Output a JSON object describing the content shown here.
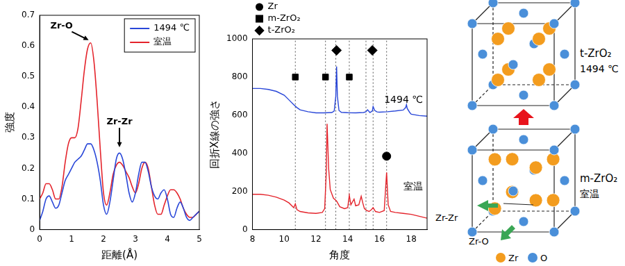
{
  "chart_data": [
    {
      "type": "line",
      "x_label": "距離(Å)",
      "y_label": "強度",
      "xlim": [
        0,
        5
      ],
      "xticks": [
        0,
        1,
        2,
        3,
        4,
        5
      ],
      "ylim": [
        0,
        0.7
      ],
      "yticks": [
        0,
        0.1,
        0.2,
        0.3,
        0.4,
        0.5,
        0.6,
        0.7
      ],
      "legend": "upper right",
      "x": [
        0,
        0.1,
        0.2,
        0.3,
        0.4,
        0.5,
        0.6,
        0.7,
        0.8,
        0.9,
        1.0,
        1.1,
        1.2,
        1.3,
        1.4,
        1.5,
        1.6,
        1.7,
        1.8,
        1.9,
        2.0,
        2.1,
        2.2,
        2.3,
        2.4,
        2.5,
        2.6,
        2.7,
        2.8,
        2.9,
        3.0,
        3.1,
        3.2,
        3.3,
        3.4,
        3.5,
        3.6,
        3.7,
        3.8,
        3.9,
        4.0,
        4.1,
        4.2,
        4.3,
        4.4,
        4.5,
        4.6,
        4.7,
        4.8,
        4.9,
        5.0
      ],
      "series": [
        {
          "name": "1494 ℃",
          "color": "#2846d8",
          "values": [
            0.03,
            0.06,
            0.1,
            0.11,
            0.09,
            0.07,
            0.08,
            0.12,
            0.16,
            0.18,
            0.2,
            0.22,
            0.23,
            0.24,
            0.26,
            0.28,
            0.28,
            0.26,
            0.22,
            0.16,
            0.08,
            0.05,
            0.09,
            0.16,
            0.23,
            0.25,
            0.23,
            0.18,
            0.12,
            0.09,
            0.12,
            0.18,
            0.22,
            0.22,
            0.19,
            0.14,
            0.11,
            0.1,
            0.12,
            0.13,
            0.1,
            0.05,
            0.04,
            0.07,
            0.09,
            0.07,
            0.04,
            0.03,
            0.04,
            0.05,
            0.06
          ]
        },
        {
          "name": "室温",
          "color": "#e4232b",
          "values": [
            0.1,
            0.12,
            0.15,
            0.15,
            0.13,
            0.1,
            0.1,
            0.14,
            0.22,
            0.28,
            0.3,
            0.3,
            0.33,
            0.42,
            0.52,
            0.59,
            0.61,
            0.55,
            0.42,
            0.26,
            0.12,
            0.08,
            0.12,
            0.18,
            0.21,
            0.22,
            0.21,
            0.19,
            0.17,
            0.14,
            0.12,
            0.15,
            0.2,
            0.22,
            0.2,
            0.14,
            0.08,
            0.05,
            0.05,
            0.08,
            0.11,
            0.13,
            0.13,
            0.12,
            0.1,
            0.07,
            0.05,
            0.04,
            0.04,
            0.05,
            0.06
          ]
        }
      ],
      "annotations": [
        {
          "text": "Zr-O",
          "x": 1.6,
          "y": 0.61
        },
        {
          "text": "Zr-Zr",
          "x": 2.5,
          "y": 0.26
        }
      ]
    },
    {
      "type": "line",
      "x_label": "角度",
      "y_label": "回折X線の強さ",
      "xlim": [
        8,
        19
      ],
      "xticks": [
        8,
        10,
        12,
        14,
        16,
        18
      ],
      "ylim": [
        0,
        1000
      ],
      "yticks": [
        0,
        200,
        400,
        600,
        800,
        1000
      ],
      "legend": "upper left",
      "series": [
        {
          "name": "1494 ℃",
          "color": "#2846d8",
          "x": [
            8,
            8.5,
            9,
            9.5,
            10,
            10.3,
            10.6,
            10.8,
            11,
            11.5,
            12,
            12.5,
            13,
            13.15,
            13.25,
            13.3,
            13.35,
            13.45,
            13.6,
            14,
            14.5,
            15,
            15.15,
            15.25,
            15.4,
            15.55,
            15.6,
            15.7,
            15.85,
            16,
            16.5,
            17,
            17.5,
            17.65,
            17.7,
            17.75,
            17.9,
            18,
            18.5,
            19
          ],
          "values": [
            740,
            740,
            735,
            725,
            705,
            680,
            655,
            640,
            628,
            618,
            612,
            612,
            614,
            622,
            700,
            855,
            700,
            625,
            615,
            613,
            612,
            614,
            618,
            628,
            614,
            622,
            645,
            625,
            617,
            616,
            618,
            622,
            627,
            640,
            655,
            635,
            615,
            605,
            598,
            595
          ]
        },
        {
          "name": "室温",
          "color": "#e4232b",
          "x": [
            8,
            8.5,
            9,
            9.5,
            10,
            10.3,
            10.6,
            10.7,
            10.8,
            11,
            11.5,
            12,
            12.4,
            12.55,
            12.65,
            12.7,
            12.8,
            12.9,
            13.1,
            13.3,
            13.5,
            13.8,
            14.0,
            14.1,
            14.2,
            14.3,
            14.4,
            14.5,
            14.7,
            14.85,
            14.95,
            15.05,
            15.2,
            15.35,
            15.5,
            15.6,
            15.75,
            16,
            16.3,
            16.45,
            16.55,
            16.7,
            17,
            17.5,
            18,
            18.5,
            19
          ],
          "values": [
            185,
            185,
            180,
            170,
            155,
            140,
            115,
            135,
            105,
            95,
            88,
            85,
            90,
            110,
            300,
            555,
            320,
            210,
            165,
            150,
            120,
            110,
            115,
            180,
            130,
            145,
            160,
            125,
            130,
            175,
            140,
            110,
            100,
            95,
            105,
            115,
            95,
            90,
            100,
            300,
            130,
            95,
            90,
            85,
            80,
            70,
            60
          ]
        }
      ],
      "markers": [
        {
          "name": "Zr",
          "marker": "circle",
          "color": "#000000",
          "points": [
            {
              "x": 16.45,
              "y": 385
            }
          ]
        },
        {
          "name": "m-ZrO₂",
          "marker": "square",
          "color": "#000000",
          "points": [
            {
              "x": 10.7,
              "y": 800
            },
            {
              "x": 12.6,
              "y": 800
            },
            {
              "x": 14.1,
              "y": 800
            }
          ]
        },
        {
          "name": "t-ZrO₂",
          "marker": "diamond",
          "color": "#000000",
          "points": [
            {
              "x": 13.3,
              "y": 940
            },
            {
              "x": 15.55,
              "y": 940
            }
          ]
        }
      ],
      "reference_lines": {
        "x": [
          10.7,
          12.6,
          13.25,
          14.1,
          15.15,
          15.6,
          16.45
        ],
        "line_style": "dotted"
      }
    }
  ],
  "diagram": {
    "structures": [
      {
        "name": "t-ZrO₂",
        "condition": "1494 ℃"
      },
      {
        "name": "m-ZrO₂",
        "condition": "室温"
      }
    ],
    "bonds": [
      "Zr-Zr",
      "Zr-O"
    ],
    "legend": [
      {
        "name": "Zr",
        "color": "#f39c1e"
      },
      {
        "name": "O",
        "color": "#4a8fd9"
      }
    ]
  }
}
